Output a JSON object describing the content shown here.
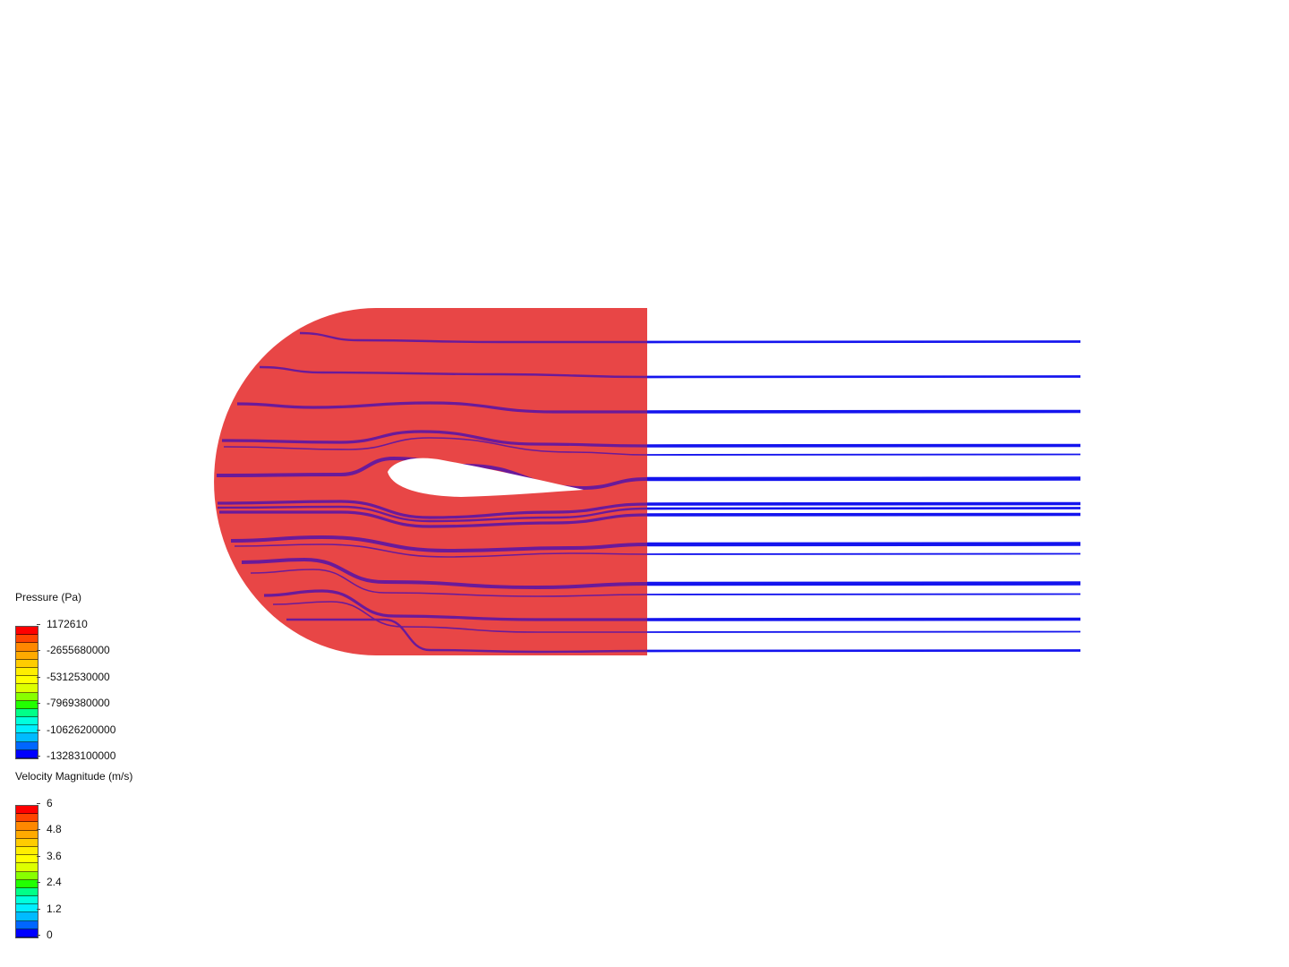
{
  "colors": {
    "domain_fill": "#e84646",
    "streamline_inside": "#6a1a9a",
    "streamline_outside": "#1414ee"
  },
  "legends": [
    {
      "title": "Pressure (Pa)",
      "labels": [
        "1172610",
        "-2655680000",
        "-5312530000",
        "-7969380000",
        "-10626200000",
        "-13283100000"
      ]
    },
    {
      "title": "Velocity Magnitude (m/s)",
      "labels": [
        "6",
        "4.8",
        "3.6",
        "2.4",
        "1.2",
        "0"
      ]
    }
  ],
  "colormap": [
    "#ff0000",
    "#ff4400",
    "#ff8800",
    "#ffaa00",
    "#ffcc00",
    "#ffee00",
    "#ffff00",
    "#ddff00",
    "#88ff00",
    "#22ff00",
    "#00ff88",
    "#00ffdd",
    "#00eeff",
    "#00bbff",
    "#0066ff",
    "#0000ff"
  ]
}
